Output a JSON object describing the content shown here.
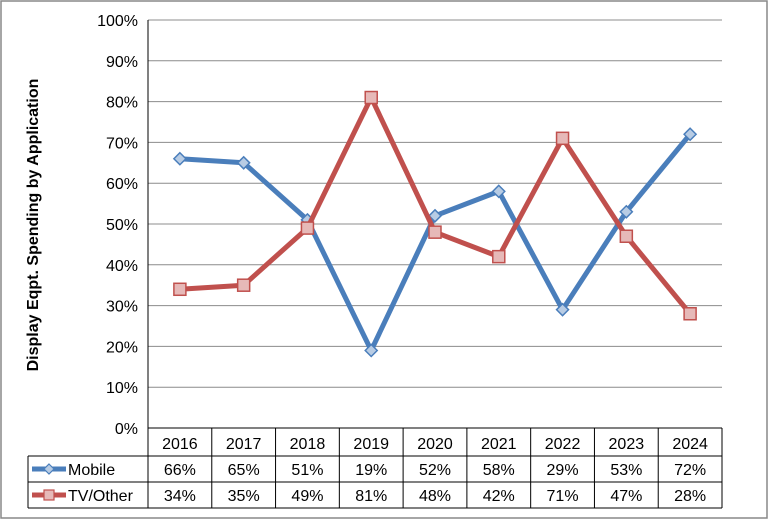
{
  "chart_data": {
    "type": "line",
    "title": "",
    "ylabel": "Display  Eqpt. Spending by Application",
    "xlabel": "",
    "ylim": [
      0,
      100
    ],
    "yticks": [
      "0%",
      "10%",
      "20%",
      "30%",
      "40%",
      "50%",
      "60%",
      "70%",
      "80%",
      "90%",
      "100%"
    ],
    "grid": true,
    "legend": "data-table",
    "categories": [
      "2016",
      "2017",
      "2018",
      "2019",
      "2020",
      "2021",
      "2022",
      "2023",
      "2024"
    ],
    "series": [
      {
        "name": "Mobile",
        "color": "#4a7ebb",
        "marker": "diamond",
        "values": [
          66,
          65,
          51,
          19,
          52,
          58,
          29,
          53,
          72
        ],
        "labels": [
          "66%",
          "65%",
          "51%",
          "19%",
          "52%",
          "58%",
          "29%",
          "53%",
          "72%"
        ]
      },
      {
        "name": "TV/Other",
        "color": "#c0504d",
        "marker": "square",
        "values": [
          34,
          35,
          49,
          81,
          48,
          42,
          71,
          47,
          28
        ],
        "labels": [
          "34%",
          "35%",
          "49%",
          "81%",
          "48%",
          "42%",
          "71%",
          "47%",
          "28%"
        ]
      }
    ]
  }
}
